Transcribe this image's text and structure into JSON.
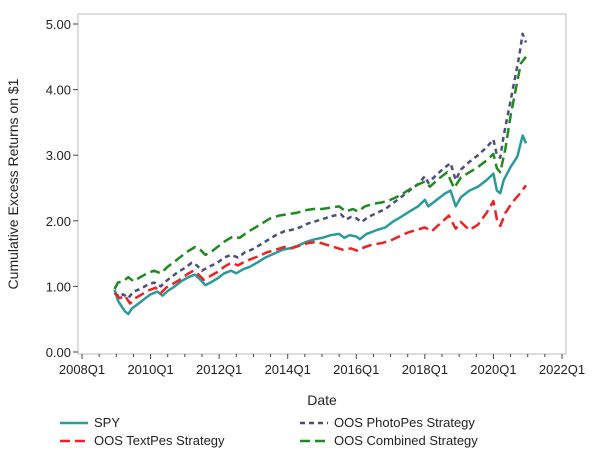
{
  "chart_data": {
    "type": "line",
    "title": "",
    "xlabel": "Date",
    "ylabel": "Cumulative Excess Returns on $1",
    "xlim": [
      2008.0,
      2022.0
    ],
    "ylim": [
      0.0,
      5.0
    ],
    "x_ticks": [
      {
        "value": 2008.0,
        "label": "2008Q1"
      },
      {
        "value": 2010.0,
        "label": "2010Q1"
      },
      {
        "value": 2012.0,
        "label": "2012Q1"
      },
      {
        "value": 2014.0,
        "label": "2014Q1"
      },
      {
        "value": 2016.0,
        "label": "2016Q1"
      },
      {
        "value": 2018.0,
        "label": "2018Q1"
      },
      {
        "value": 2020.0,
        "label": "2020Q1"
      },
      {
        "value": 2022.0,
        "label": "2022Q1"
      }
    ],
    "y_ticks": [
      {
        "value": 0.0,
        "label": "0.00"
      },
      {
        "value": 1.0,
        "label": "1.00"
      },
      {
        "value": 2.0,
        "label": "2.00"
      },
      {
        "value": 3.0,
        "label": "3.00"
      },
      {
        "value": 4.0,
        "label": "4.00"
      },
      {
        "value": 5.0,
        "label": "5.00"
      }
    ],
    "legend_position": "bottom",
    "grid": false,
    "series": [
      {
        "name": "SPY",
        "color": "#2a9a9a",
        "dash": "solid",
        "points": [
          [
            2008.95,
            0.95
          ],
          [
            2009.05,
            0.78
          ],
          [
            2009.15,
            0.7
          ],
          [
            2009.25,
            0.62
          ],
          [
            2009.35,
            0.58
          ],
          [
            2009.45,
            0.66
          ],
          [
            2009.6,
            0.72
          ],
          [
            2009.8,
            0.8
          ],
          [
            2010.0,
            0.88
          ],
          [
            2010.2,
            0.92
          ],
          [
            2010.35,
            0.86
          ],
          [
            2010.5,
            0.93
          ],
          [
            2010.7,
            1.0
          ],
          [
            2010.9,
            1.08
          ],
          [
            2011.1,
            1.14
          ],
          [
            2011.3,
            1.18
          ],
          [
            2011.45,
            1.1
          ],
          [
            2011.6,
            1.02
          ],
          [
            2011.75,
            1.06
          ],
          [
            2011.95,
            1.12
          ],
          [
            2012.15,
            1.2
          ],
          [
            2012.35,
            1.24
          ],
          [
            2012.5,
            1.2
          ],
          [
            2012.7,
            1.26
          ],
          [
            2012.9,
            1.3
          ],
          [
            2013.1,
            1.36
          ],
          [
            2013.35,
            1.44
          ],
          [
            2013.6,
            1.5
          ],
          [
            2013.85,
            1.56
          ],
          [
            2014.05,
            1.58
          ],
          [
            2014.3,
            1.62
          ],
          [
            2014.55,
            1.68
          ],
          [
            2014.8,
            1.72
          ],
          [
            2015.0,
            1.74
          ],
          [
            2015.25,
            1.78
          ],
          [
            2015.5,
            1.8
          ],
          [
            2015.65,
            1.74
          ],
          [
            2015.8,
            1.78
          ],
          [
            2016.0,
            1.76
          ],
          [
            2016.1,
            1.72
          ],
          [
            2016.3,
            1.8
          ],
          [
            2016.6,
            1.86
          ],
          [
            2016.85,
            1.9
          ],
          [
            2017.05,
            1.98
          ],
          [
            2017.3,
            2.06
          ],
          [
            2017.55,
            2.14
          ],
          [
            2017.8,
            2.22
          ],
          [
            2018.0,
            2.32
          ],
          [
            2018.1,
            2.22
          ],
          [
            2018.3,
            2.3
          ],
          [
            2018.6,
            2.42
          ],
          [
            2018.75,
            2.46
          ],
          [
            2018.9,
            2.22
          ],
          [
            2019.05,
            2.36
          ],
          [
            2019.3,
            2.46
          ],
          [
            2019.55,
            2.52
          ],
          [
            2019.8,
            2.62
          ],
          [
            2020.0,
            2.72
          ],
          [
            2020.1,
            2.46
          ],
          [
            2020.2,
            2.42
          ],
          [
            2020.3,
            2.62
          ],
          [
            2020.5,
            2.82
          ],
          [
            2020.7,
            2.98
          ],
          [
            2020.85,
            3.3
          ],
          [
            2020.95,
            3.18
          ]
        ]
      },
      {
        "name": "OOS PhotoPes Strategy",
        "color": "#4a4f7c",
        "dash": "short",
        "points": [
          [
            2008.95,
            0.9
          ],
          [
            2009.1,
            0.84
          ],
          [
            2009.2,
            0.88
          ],
          [
            2009.35,
            0.82
          ],
          [
            2009.5,
            0.92
          ],
          [
            2009.7,
            0.96
          ],
          [
            2009.9,
            1.02
          ],
          [
            2010.1,
            1.06
          ],
          [
            2010.3,
            1.0
          ],
          [
            2010.45,
            1.08
          ],
          [
            2010.6,
            1.14
          ],
          [
            2010.8,
            1.22
          ],
          [
            2011.0,
            1.28
          ],
          [
            2011.2,
            1.36
          ],
          [
            2011.35,
            1.32
          ],
          [
            2011.5,
            1.24
          ],
          [
            2011.7,
            1.3
          ],
          [
            2011.95,
            1.36
          ],
          [
            2012.15,
            1.44
          ],
          [
            2012.35,
            1.48
          ],
          [
            2012.55,
            1.44
          ],
          [
            2012.75,
            1.52
          ],
          [
            2012.95,
            1.56
          ],
          [
            2013.15,
            1.62
          ],
          [
            2013.4,
            1.7
          ],
          [
            2013.65,
            1.78
          ],
          [
            2013.9,
            1.84
          ],
          [
            2014.1,
            1.86
          ],
          [
            2014.35,
            1.9
          ],
          [
            2014.6,
            1.96
          ],
          [
            2014.85,
            2.0
          ],
          [
            2015.1,
            2.04
          ],
          [
            2015.35,
            2.08
          ],
          [
            2015.55,
            2.1
          ],
          [
            2015.7,
            2.02
          ],
          [
            2015.85,
            2.06
          ],
          [
            2016.0,
            2.04
          ],
          [
            2016.15,
            1.98
          ],
          [
            2016.35,
            2.06
          ],
          [
            2016.6,
            2.12
          ],
          [
            2016.85,
            2.18
          ],
          [
            2017.05,
            2.26
          ],
          [
            2017.3,
            2.36
          ],
          [
            2017.55,
            2.46
          ],
          [
            2017.8,
            2.56
          ],
          [
            2018.0,
            2.68
          ],
          [
            2018.1,
            2.58
          ],
          [
            2018.3,
            2.68
          ],
          [
            2018.55,
            2.8
          ],
          [
            2018.75,
            2.88
          ],
          [
            2018.9,
            2.62
          ],
          [
            2019.05,
            2.78
          ],
          [
            2019.3,
            2.9
          ],
          [
            2019.55,
            3.0
          ],
          [
            2019.8,
            3.12
          ],
          [
            2020.0,
            3.24
          ],
          [
            2020.1,
            3.0
          ],
          [
            2020.2,
            2.96
          ],
          [
            2020.3,
            3.3
          ],
          [
            2020.45,
            3.7
          ],
          [
            2020.6,
            4.1
          ],
          [
            2020.75,
            4.5
          ],
          [
            2020.85,
            4.85
          ],
          [
            2020.95,
            4.72
          ]
        ]
      },
      {
        "name": "OOS TextPes Strategy",
        "color": "#ee2222",
        "dash": "long",
        "points": [
          [
            2008.95,
            0.9
          ],
          [
            2009.1,
            0.82
          ],
          [
            2009.25,
            0.86
          ],
          [
            2009.4,
            0.74
          ],
          [
            2009.55,
            0.82
          ],
          [
            2009.75,
            0.88
          ],
          [
            2009.95,
            0.94
          ],
          [
            2010.15,
            0.98
          ],
          [
            2010.3,
            0.9
          ],
          [
            2010.45,
            0.98
          ],
          [
            2010.65,
            1.04
          ],
          [
            2010.85,
            1.1
          ],
          [
            2011.05,
            1.18
          ],
          [
            2011.25,
            1.24
          ],
          [
            2011.4,
            1.18
          ],
          [
            2011.55,
            1.1
          ],
          [
            2011.75,
            1.16
          ],
          [
            2011.95,
            1.22
          ],
          [
            2012.15,
            1.3
          ],
          [
            2012.35,
            1.36
          ],
          [
            2012.55,
            1.32
          ],
          [
            2012.75,
            1.38
          ],
          [
            2012.95,
            1.42
          ],
          [
            2013.15,
            1.46
          ],
          [
            2013.4,
            1.52
          ],
          [
            2013.65,
            1.56
          ],
          [
            2013.9,
            1.6
          ],
          [
            2014.1,
            1.58
          ],
          [
            2014.35,
            1.62
          ],
          [
            2014.6,
            1.66
          ],
          [
            2014.85,
            1.68
          ],
          [
            2015.1,
            1.64
          ],
          [
            2015.35,
            1.6
          ],
          [
            2015.6,
            1.56
          ],
          [
            2015.85,
            1.58
          ],
          [
            2016.05,
            1.54
          ],
          [
            2016.25,
            1.6
          ],
          [
            2016.5,
            1.64
          ],
          [
            2016.75,
            1.66
          ],
          [
            2017.0,
            1.7
          ],
          [
            2017.25,
            1.76
          ],
          [
            2017.5,
            1.82
          ],
          [
            2017.75,
            1.86
          ],
          [
            2018.0,
            1.9
          ],
          [
            2018.2,
            1.84
          ],
          [
            2018.45,
            1.96
          ],
          [
            2018.7,
            2.08
          ],
          [
            2018.9,
            1.88
          ],
          [
            2019.05,
            1.98
          ],
          [
            2019.3,
            1.86
          ],
          [
            2019.55,
            1.94
          ],
          [
            2019.8,
            2.12
          ],
          [
            2020.0,
            2.3
          ],
          [
            2020.1,
            2.02
          ],
          [
            2020.2,
            1.92
          ],
          [
            2020.35,
            2.12
          ],
          [
            2020.55,
            2.28
          ],
          [
            2020.75,
            2.4
          ],
          [
            2020.95,
            2.54
          ]
        ]
      },
      {
        "name": "OOS Combined Strategy",
        "color": "#1f8a1f",
        "dash": "long",
        "points": [
          [
            2008.95,
            0.96
          ],
          [
            2009.05,
            1.06
          ],
          [
            2009.2,
            1.08
          ],
          [
            2009.35,
            1.14
          ],
          [
            2009.5,
            1.08
          ],
          [
            2009.7,
            1.14
          ],
          [
            2009.9,
            1.2
          ],
          [
            2010.1,
            1.24
          ],
          [
            2010.3,
            1.2
          ],
          [
            2010.5,
            1.3
          ],
          [
            2010.7,
            1.38
          ],
          [
            2010.9,
            1.46
          ],
          [
            2011.1,
            1.54
          ],
          [
            2011.3,
            1.6
          ],
          [
            2011.45,
            1.56
          ],
          [
            2011.6,
            1.48
          ],
          [
            2011.8,
            1.54
          ],
          [
            2012.0,
            1.62
          ],
          [
            2012.2,
            1.7
          ],
          [
            2012.4,
            1.76
          ],
          [
            2012.6,
            1.74
          ],
          [
            2012.8,
            1.82
          ],
          [
            2013.0,
            1.88
          ],
          [
            2013.25,
            1.96
          ],
          [
            2013.5,
            2.04
          ],
          [
            2013.75,
            2.08
          ],
          [
            2014.0,
            2.1
          ],
          [
            2014.25,
            2.12
          ],
          [
            2014.5,
            2.16
          ],
          [
            2014.75,
            2.18
          ],
          [
            2015.0,
            2.18
          ],
          [
            2015.25,
            2.2
          ],
          [
            2015.5,
            2.22
          ],
          [
            2015.7,
            2.14
          ],
          [
            2015.9,
            2.18
          ],
          [
            2016.05,
            2.14
          ],
          [
            2016.25,
            2.22
          ],
          [
            2016.5,
            2.26
          ],
          [
            2016.75,
            2.28
          ],
          [
            2017.0,
            2.32
          ],
          [
            2017.25,
            2.38
          ],
          [
            2017.5,
            2.46
          ],
          [
            2017.75,
            2.54
          ],
          [
            2018.0,
            2.6
          ],
          [
            2018.15,
            2.52
          ],
          [
            2018.4,
            2.64
          ],
          [
            2018.65,
            2.74
          ],
          [
            2018.85,
            2.5
          ],
          [
            2019.05,
            2.66
          ],
          [
            2019.3,
            2.74
          ],
          [
            2019.55,
            2.82
          ],
          [
            2019.8,
            2.92
          ],
          [
            2020.0,
            3.02
          ],
          [
            2020.1,
            2.8
          ],
          [
            2020.2,
            2.74
          ],
          [
            2020.35,
            3.1
          ],
          [
            2020.5,
            3.6
          ],
          [
            2020.65,
            4.0
          ],
          [
            2020.8,
            4.4
          ],
          [
            2020.95,
            4.5
          ]
        ]
      }
    ]
  }
}
